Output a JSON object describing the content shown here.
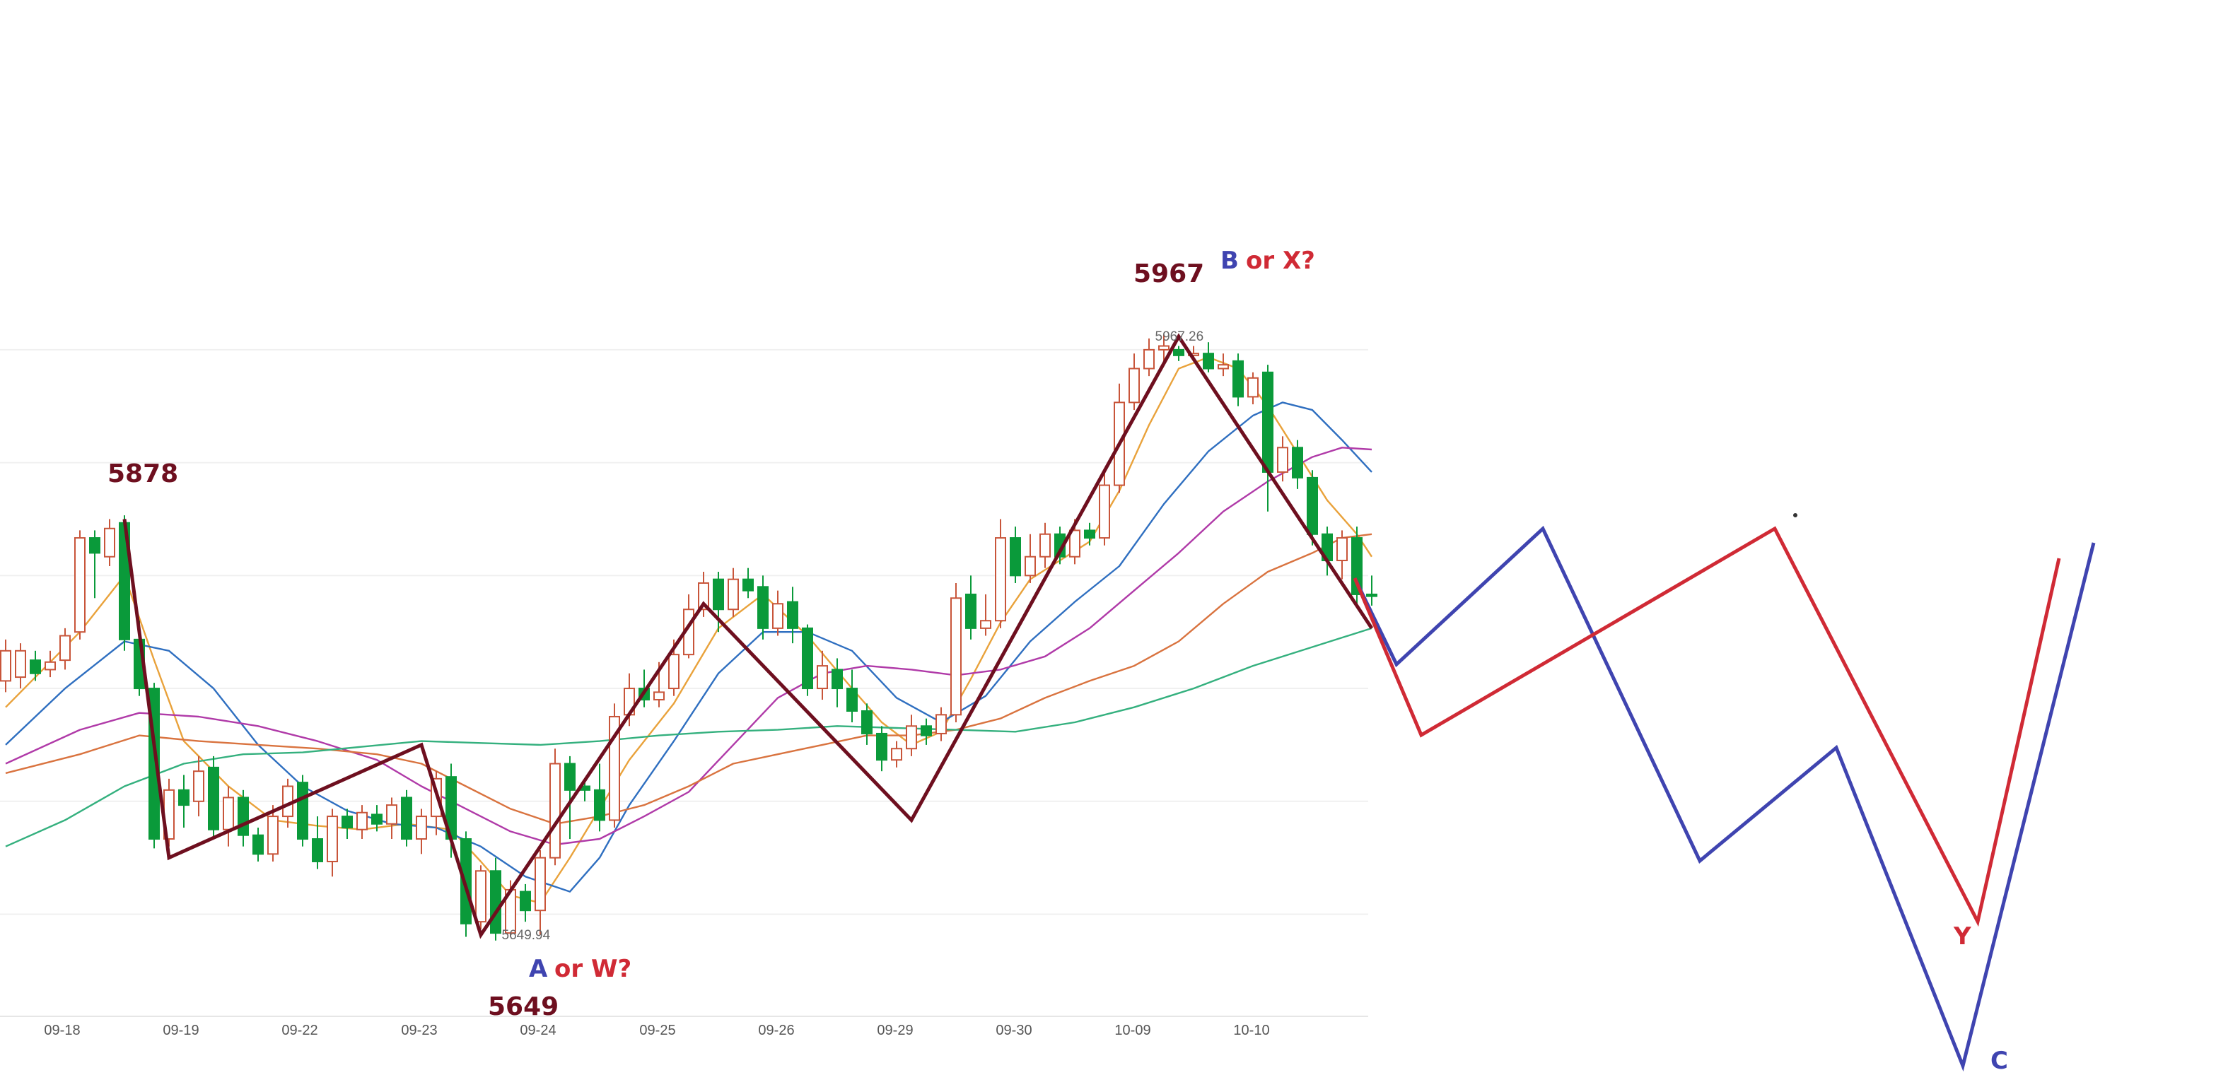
{
  "colors": {
    "up_candle": "#c8553a",
    "down_candle": "#0a9a3a",
    "zigzag": "#6e0f1f",
    "ma5": "#e9a23b",
    "ma10": "#2f6fc0",
    "ma20": "#b03aa8",
    "ma30": "#d9733f",
    "ma60": "#34b07e",
    "blue_path": "#3f44b0",
    "red_path": "#d02a35",
    "label_dark": "#6e0f1f",
    "label_blue": "#3f44b0",
    "label_red": "#d02a35"
  },
  "chart_data": {
    "type": "candlestick",
    "ylim": [
      5620,
      5990
    ],
    "x_ticks": [
      "09-18",
      "09-19",
      "09-22",
      "09-23",
      "09-24",
      "09-25",
      "09-26",
      "09-29",
      "09-30",
      "10-09",
      "10-10"
    ],
    "candles": [
      [
        5784,
        5800,
        5778,
        5806
      ],
      [
        5786,
        5800,
        5780,
        5804
      ],
      [
        5795,
        5788,
        5784,
        5800
      ],
      [
        5790,
        5794,
        5786,
        5800
      ],
      [
        5795,
        5808,
        5790,
        5812
      ],
      [
        5810,
        5860,
        5806,
        5864
      ],
      [
        5860,
        5852,
        5828,
        5864
      ],
      [
        5850,
        5865,
        5845,
        5870
      ],
      [
        5868,
        5806,
        5800,
        5872
      ],
      [
        5806,
        5780,
        5776,
        5816
      ],
      [
        5780,
        5700,
        5695,
        5783
      ],
      [
        5700,
        5726,
        5696,
        5732
      ],
      [
        5726,
        5718,
        5706,
        5734
      ],
      [
        5720,
        5736,
        5712,
        5744
      ],
      [
        5738,
        5705,
        5700,
        5744
      ],
      [
        5705,
        5722,
        5696,
        5728
      ],
      [
        5722,
        5702,
        5696,
        5726
      ],
      [
        5702,
        5692,
        5688,
        5706
      ],
      [
        5692,
        5712,
        5688,
        5718
      ],
      [
        5712,
        5728,
        5706,
        5732
      ],
      [
        5730,
        5700,
        5696,
        5734
      ],
      [
        5700,
        5688,
        5684,
        5712
      ],
      [
        5688,
        5712,
        5680,
        5716
      ],
      [
        5712,
        5706,
        5700,
        5716
      ],
      [
        5705,
        5714,
        5700,
        5718
      ],
      [
        5713,
        5708,
        5704,
        5718
      ],
      [
        5708,
        5718,
        5700,
        5722
      ],
      [
        5722,
        5700,
        5696,
        5726
      ],
      [
        5700,
        5712,
        5692,
        5716
      ],
      [
        5712,
        5732,
        5702,
        5736
      ],
      [
        5733,
        5700,
        5690,
        5740
      ],
      [
        5700,
        5655,
        5648,
        5704
      ],
      [
        5656,
        5683,
        5652,
        5686
      ],
      [
        5683,
        5650,
        5646,
        5690
      ],
      [
        5650,
        5673,
        5648,
        5678
      ],
      [
        5672,
        5662,
        5656,
        5676
      ],
      [
        5662,
        5690,
        5649,
        5694
      ],
      [
        5690,
        5740,
        5686,
        5748
      ],
      [
        5740,
        5726,
        5700,
        5744
      ],
      [
        5728,
        5726,
        5720,
        5730
      ],
      [
        5726,
        5710,
        5704,
        5740
      ],
      [
        5710,
        5765,
        5706,
        5772
      ],
      [
        5766,
        5780,
        5760,
        5788
      ],
      [
        5780,
        5774,
        5770,
        5790
      ],
      [
        5774,
        5778,
        5770,
        5794
      ],
      [
        5780,
        5798,
        5776,
        5806
      ],
      [
        5798,
        5822,
        5796,
        5830
      ],
      [
        5822,
        5836,
        5818,
        5842
      ],
      [
        5838,
        5822,
        5810,
        5842
      ],
      [
        5822,
        5838,
        5818,
        5844
      ],
      [
        5838,
        5832,
        5828,
        5844
      ],
      [
        5834,
        5812,
        5806,
        5840
      ],
      [
        5812,
        5825,
        5808,
        5832
      ],
      [
        5826,
        5812,
        5804,
        5834
      ],
      [
        5812,
        5780,
        5776,
        5814
      ],
      [
        5780,
        5792,
        5774,
        5800
      ],
      [
        5790,
        5780,
        5770,
        5796
      ],
      [
        5780,
        5768,
        5762,
        5790
      ],
      [
        5768,
        5756,
        5750,
        5772
      ],
      [
        5756,
        5742,
        5736,
        5760
      ],
      [
        5742,
        5748,
        5738,
        5752
      ],
      [
        5748,
        5760,
        5744,
        5766
      ],
      [
        5760,
        5755,
        5750,
        5764
      ],
      [
        5756,
        5766,
        5752,
        5770
      ],
      [
        5766,
        5828,
        5762,
        5836
      ],
      [
        5830,
        5812,
        5806,
        5840
      ],
      [
        5812,
        5816,
        5808,
        5830
      ],
      [
        5816,
        5860,
        5812,
        5870
      ],
      [
        5860,
        5840,
        5836,
        5866
      ],
      [
        5840,
        5850,
        5836,
        5862
      ],
      [
        5850,
        5862,
        5844,
        5868
      ],
      [
        5862,
        5850,
        5846,
        5866
      ],
      [
        5850,
        5864,
        5846,
        5870
      ],
      [
        5864,
        5860,
        5856,
        5868
      ],
      [
        5860,
        5888,
        5856,
        5896
      ],
      [
        5888,
        5932,
        5884,
        5942
      ],
      [
        5932,
        5950,
        5928,
        5958
      ],
      [
        5950,
        5960,
        5946,
        5966
      ],
      [
        5960,
        5962,
        5954,
        5968
      ],
      [
        5960,
        5957,
        5954,
        5962
      ],
      [
        5957,
        5958,
        5954,
        5962
      ],
      [
        5958,
        5950,
        5948,
        5964
      ],
      [
        5950,
        5952,
        5946,
        5958
      ],
      [
        5954,
        5935,
        5930,
        5958
      ],
      [
        5935,
        5945,
        5931,
        5948
      ],
      [
        5948,
        5895,
        5874,
        5952
      ],
      [
        5895,
        5908,
        5890,
        5914
      ],
      [
        5908,
        5892,
        5886,
        5912
      ],
      [
        5892,
        5862,
        5856,
        5896
      ],
      [
        5862,
        5848,
        5840,
        5866
      ],
      [
        5848,
        5860,
        5838,
        5864
      ],
      [
        5860,
        5830,
        5824,
        5866
      ],
      [
        5830,
        5829,
        5824,
        5840
      ]
    ],
    "ma_series": [
      {
        "key": "ma5",
        "points": [
          [
            0,
            5770
          ],
          [
            5,
            5810
          ],
          [
            8,
            5840
          ],
          [
            10,
            5795
          ],
          [
            12,
            5752
          ],
          [
            15,
            5728
          ],
          [
            18,
            5710
          ],
          [
            21,
            5707
          ],
          [
            24,
            5705
          ],
          [
            27,
            5708
          ],
          [
            30,
            5705
          ],
          [
            32,
            5688
          ],
          [
            34,
            5670
          ],
          [
            36,
            5666
          ],
          [
            38,
            5690
          ],
          [
            40,
            5716
          ],
          [
            42,
            5742
          ],
          [
            45,
            5772
          ],
          [
            48,
            5812
          ],
          [
            51,
            5830
          ],
          [
            54,
            5808
          ],
          [
            57,
            5780
          ],
          [
            59,
            5762
          ],
          [
            61,
            5750
          ],
          [
            63,
            5757
          ],
          [
            65,
            5785
          ],
          [
            67,
            5815
          ],
          [
            69,
            5838
          ],
          [
            71,
            5848
          ],
          [
            73,
            5858
          ],
          [
            75,
            5885
          ],
          [
            77,
            5920
          ],
          [
            79,
            5950
          ],
          [
            81,
            5956
          ],
          [
            83,
            5950
          ],
          [
            85,
            5930
          ],
          [
            87,
            5905
          ],
          [
            89,
            5880
          ],
          [
            91,
            5862
          ],
          [
            92,
            5850
          ]
        ]
      },
      {
        "key": "ma10",
        "points": [
          [
            0,
            5750
          ],
          [
            4,
            5780
          ],
          [
            8,
            5805
          ],
          [
            11,
            5800
          ],
          [
            14,
            5780
          ],
          [
            17,
            5750
          ],
          [
            20,
            5728
          ],
          [
            23,
            5715
          ],
          [
            26,
            5708
          ],
          [
            29,
            5706
          ],
          [
            32,
            5696
          ],
          [
            35,
            5680
          ],
          [
            38,
            5672
          ],
          [
            40,
            5690
          ],
          [
            42,
            5718
          ],
          [
            45,
            5752
          ],
          [
            48,
            5788
          ],
          [
            51,
            5810
          ],
          [
            54,
            5810
          ],
          [
            57,
            5800
          ],
          [
            60,
            5775
          ],
          [
            63,
            5762
          ],
          [
            66,
            5776
          ],
          [
            69,
            5805
          ],
          [
            72,
            5826
          ],
          [
            75,
            5845
          ],
          [
            78,
            5878
          ],
          [
            81,
            5906
          ],
          [
            84,
            5925
          ],
          [
            86,
            5932
          ],
          [
            88,
            5928
          ],
          [
            90,
            5912
          ],
          [
            92,
            5895
          ]
        ]
      },
      {
        "key": "ma20",
        "points": [
          [
            0,
            5740
          ],
          [
            5,
            5758
          ],
          [
            9,
            5767
          ],
          [
            13,
            5765
          ],
          [
            17,
            5760
          ],
          [
            21,
            5752
          ],
          [
            25,
            5742
          ],
          [
            28,
            5728
          ],
          [
            31,
            5716
          ],
          [
            34,
            5704
          ],
          [
            37,
            5697
          ],
          [
            40,
            5700
          ],
          [
            43,
            5712
          ],
          [
            46,
            5725
          ],
          [
            49,
            5750
          ],
          [
            52,
            5775
          ],
          [
            55,
            5788
          ],
          [
            58,
            5792
          ],
          [
            61,
            5790
          ],
          [
            64,
            5787
          ],
          [
            67,
            5790
          ],
          [
            70,
            5797
          ],
          [
            73,
            5812
          ],
          [
            76,
            5832
          ],
          [
            79,
            5852
          ],
          [
            82,
            5874
          ],
          [
            85,
            5890
          ],
          [
            88,
            5903
          ],
          [
            90,
            5908
          ],
          [
            92,
            5907
          ]
        ]
      },
      {
        "key": "ma30",
        "points": [
          [
            0,
            5735
          ],
          [
            5,
            5745
          ],
          [
            9,
            5755
          ],
          [
            13,
            5752
          ],
          [
            17,
            5750
          ],
          [
            21,
            5748
          ],
          [
            25,
            5745
          ],
          [
            28,
            5740
          ],
          [
            31,
            5728
          ],
          [
            34,
            5716
          ],
          [
            37,
            5708
          ],
          [
            40,
            5712
          ],
          [
            43,
            5718
          ],
          [
            46,
            5728
          ],
          [
            49,
            5740
          ],
          [
            52,
            5745
          ],
          [
            55,
            5750
          ],
          [
            58,
            5755
          ],
          [
            61,
            5755
          ],
          [
            64,
            5758
          ],
          [
            67,
            5764
          ],
          [
            70,
            5775
          ],
          [
            73,
            5784
          ],
          [
            76,
            5792
          ],
          [
            79,
            5805
          ],
          [
            82,
            5825
          ],
          [
            85,
            5842
          ],
          [
            88,
            5852
          ],
          [
            90,
            5860
          ],
          [
            92,
            5862
          ]
        ]
      },
      {
        "key": "ma60",
        "points": [
          [
            0,
            5696
          ],
          [
            4,
            5710
          ],
          [
            8,
            5728
          ],
          [
            12,
            5740
          ],
          [
            16,
            5745
          ],
          [
            20,
            5746
          ],
          [
            24,
            5749
          ],
          [
            28,
            5752
          ],
          [
            32,
            5751
          ],
          [
            36,
            5750
          ],
          [
            40,
            5752
          ],
          [
            44,
            5755
          ],
          [
            48,
            5757
          ],
          [
            52,
            5758
          ],
          [
            56,
            5760
          ],
          [
            60,
            5759
          ],
          [
            64,
            5758
          ],
          [
            68,
            5757
          ],
          [
            72,
            5762
          ],
          [
            76,
            5770
          ],
          [
            80,
            5780
          ],
          [
            84,
            5792
          ],
          [
            88,
            5802
          ],
          [
            92,
            5812
          ]
        ]
      }
    ],
    "zigzag": [
      [
        8,
        5870
      ],
      [
        11,
        5690
      ],
      [
        28,
        5750
      ],
      [
        32,
        5649
      ],
      [
        47,
        5825
      ],
      [
        61,
        5710
      ],
      [
        79,
        5967
      ],
      [
        92,
        5812
      ]
    ],
    "price_notes": [
      {
        "text": "5967.26",
        "at": [
          77.5,
          5967
        ]
      },
      {
        "text": "5649.94",
        "at": [
          33.5,
          5649
        ]
      }
    ],
    "annotations": {
      "high_5878": "5878",
      "high_5967": "5967",
      "low_5649": "5649",
      "B": "B",
      "or_X": "or X?",
      "A": "A",
      "or_W": "or W?",
      "Y": "Y",
      "C": "C"
    },
    "projection_paths": {
      "blue": [
        [
          0,
          0
        ],
        [
          1,
          0.28
        ],
        [
          2,
          -0.18
        ],
        [
          3,
          0.62
        ],
        [
          4,
          0.43
        ],
        [
          5,
          1.07
        ],
        [
          6,
          -0.3
        ]
      ],
      "red": [
        [
          0,
          0
        ],
        [
          1,
          0.33
        ],
        [
          2,
          -0.16
        ],
        [
          3,
          0.73
        ],
        [
          4,
          -0.1
        ]
      ]
    }
  }
}
